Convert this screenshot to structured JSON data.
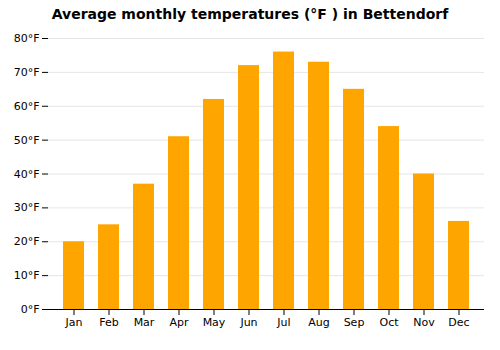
{
  "chart_data": {
    "type": "bar",
    "title": "Average monthly temperatures (°F ) in Bettendorf",
    "categories": [
      "Jan",
      "Feb",
      "Mar",
      "Apr",
      "May",
      "Jun",
      "Jul",
      "Aug",
      "Sep",
      "Oct",
      "Nov",
      "Dec"
    ],
    "values": [
      20,
      25,
      37,
      51,
      62,
      72,
      76,
      73,
      65,
      54,
      40,
      26
    ],
    "color": "#FFA500",
    "ylim": [
      0,
      80
    ],
    "yticks": [
      {
        "value": 0,
        "label": "0°F"
      },
      {
        "value": 10,
        "label": "10°F"
      },
      {
        "value": 20,
        "label": "20°F"
      },
      {
        "value": 30,
        "label": "30°F"
      },
      {
        "value": 40,
        "label": "40°F"
      },
      {
        "value": 50,
        "label": "50°F"
      },
      {
        "value": 60,
        "label": "60°F"
      },
      {
        "value": 70,
        "label": "70°F"
      },
      {
        "value": 80,
        "label": "80°F"
      }
    ],
    "grid": true
  }
}
